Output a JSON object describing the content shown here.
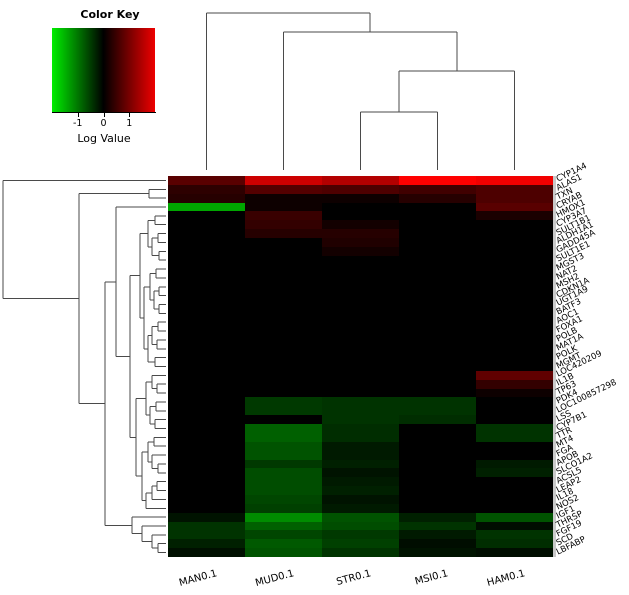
{
  "color_key": {
    "title": "Color Key",
    "axis_label": "Log Value",
    "ticks": [
      {
        "value": -1,
        "label": "-1"
      },
      {
        "value": 0,
        "label": "0"
      },
      {
        "value": 1,
        "label": "1"
      }
    ],
    "gradient_left_color": "#00ee00",
    "gradient_mid_color": "#000000",
    "gradient_right_color": "#ee0000"
  },
  "chart_data": {
    "type": "heatmap",
    "value_scale": "Log Value",
    "colormap": "green-black-red",
    "color_limits": [
      -2,
      2
    ],
    "columns": [
      "MAN0.1",
      "MUD0.1",
      "STR0.1",
      "MSI0.1",
      "HAM0.1"
    ],
    "rows": [
      "CYP1A4",
      "ALAS1",
      "TXN",
      "CRYAB",
      "HMOX1",
      "CYP3A7",
      "SULT1B1",
      "ALDH1A1",
      "GADD45A",
      "SULT1E1",
      "MGST3",
      "NAT2",
      "MSH2",
      "CDKN1A",
      "UGT1A9",
      "BATF3",
      "AOC1",
      "FOXA1",
      "POLB",
      "MAT1A",
      "POLK",
      "MGMT",
      "LOC420209",
      "IL1B",
      "TP63",
      "PDK4",
      "LOC100857298",
      "LSS",
      "CYP7B1",
      "TTR",
      "MT4",
      "FGA",
      "APOB",
      "SLCO1A2",
      "ACSL5",
      "LEAP2",
      "IL18",
      "NOS2",
      "IGF1",
      "THRSP",
      "FGF19",
      "SCD",
      "LBFABP"
    ],
    "values": [
      [
        0.7,
        1.6,
        1.4,
        2.0,
        1.9
      ],
      [
        0.35,
        0.65,
        0.6,
        0.5,
        0.6
      ],
      [
        0.3,
        0.1,
        0.1,
        0.3,
        0.6
      ],
      [
        -1.3,
        0.1,
        0.0,
        0.0,
        0.7
      ],
      [
        0.0,
        0.45,
        0.0,
        0.0,
        0.2
      ],
      [
        0.0,
        0.4,
        0.15,
        0.0,
        0.0
      ],
      [
        0.0,
        0.3,
        0.3,
        0.0,
        0.0
      ],
      [
        0.0,
        0.0,
        0.25,
        0.0,
        0.0
      ],
      [
        0.0,
        0.0,
        0.15,
        0.0,
        0.0
      ],
      [
        0.0,
        0.0,
        0.0,
        0.0,
        0.0
      ],
      [
        0.0,
        0.0,
        0.0,
        0.0,
        0.0
      ],
      [
        0.0,
        0.0,
        0.0,
        0.0,
        0.0
      ],
      [
        0.0,
        0.0,
        0.0,
        0.0,
        0.0
      ],
      [
        0.0,
        0.0,
        0.0,
        0.0,
        0.0
      ],
      [
        0.0,
        0.0,
        0.0,
        0.0,
        0.0
      ],
      [
        0.0,
        0.0,
        0.0,
        0.0,
        0.0
      ],
      [
        0.0,
        0.0,
        0.0,
        0.0,
        0.0
      ],
      [
        0.0,
        0.0,
        0.0,
        0.0,
        0.0
      ],
      [
        0.0,
        0.0,
        0.0,
        0.0,
        0.0
      ],
      [
        0.0,
        0.0,
        0.0,
        0.0,
        0.0
      ],
      [
        0.0,
        0.0,
        0.0,
        0.0,
        0.0
      ],
      [
        0.0,
        0.0,
        0.0,
        0.0,
        0.0
      ],
      [
        0.0,
        0.0,
        0.0,
        0.0,
        0.75
      ],
      [
        0.0,
        0.0,
        0.0,
        0.0,
        0.4
      ],
      [
        0.0,
        0.0,
        0.0,
        0.0,
        0.1
      ],
      [
        0.0,
        -0.45,
        -0.4,
        -0.4,
        0.0
      ],
      [
        0.0,
        -0.45,
        -0.4,
        -0.4,
        0.0
      ],
      [
        0.0,
        0.0,
        -0.4,
        -0.35,
        0.0
      ],
      [
        0.0,
        -0.75,
        -0.35,
        0.0,
        -0.4
      ],
      [
        0.0,
        -0.75,
        -0.35,
        0.0,
        -0.4
      ],
      [
        0.0,
        -0.65,
        -0.2,
        0.0,
        0.0
      ],
      [
        0.0,
        -0.65,
        -0.2,
        0.0,
        0.0
      ],
      [
        0.0,
        -0.45,
        -0.25,
        0.0,
        -0.2
      ],
      [
        0.0,
        -0.6,
        -0.15,
        0.0,
        -0.25
      ],
      [
        0.0,
        -0.6,
        -0.2,
        0.0,
        0.0
      ],
      [
        0.0,
        -0.6,
        -0.25,
        0.0,
        0.0
      ],
      [
        0.0,
        -0.55,
        -0.15,
        0.0,
        0.0
      ],
      [
        0.0,
        -0.5,
        -0.2,
        0.0,
        0.0
      ],
      [
        -0.15,
        -1.1,
        -0.65,
        -0.25,
        -0.65
      ],
      [
        -0.4,
        -0.75,
        -0.6,
        -0.4,
        -0.1
      ],
      [
        -0.4,
        -0.55,
        -0.45,
        -0.2,
        -0.4
      ],
      [
        -0.25,
        -0.7,
        -0.5,
        -0.1,
        -0.35
      ],
      [
        -0.12,
        -0.65,
        -0.4,
        -0.15,
        -0.1
      ]
    ],
    "col_dendrogram": [
      13,
      0,
      [
        32,
        1,
        [
          71,
          [
            112,
            2,
            3
          ],
          4
        ]
      ]
    ],
    "row_dendrogram": [
      3,
      0,
      [
        79,
        [
          149,
          1,
          2
        ],
        [
          105,
          [
            116,
            3,
            [
              130,
              [
                140,
                [
                  148,
                  [
                    155,
                    4,
                    5
                  ],
                  [
                    152,
                    [
                      158,
                      6,
                      7
                    ],
                    [
                      159,
                      8,
                      9
                    ]
                  ]
                ],
                [
                  144,
                  [
                    150,
                    [
                      156,
                      10,
                      11
                    ],
                    [
                      154,
                      [
                        159,
                        12,
                        13
                      ],
                      [
                        159,
                        14,
                        15
                      ]
                    ]
                  ],
                  [
                    148,
                    [
                      152,
                      [
                        158,
                        16,
                        17
                      ],
                      [
                        157,
                        18,
                        19
                      ]
                    ],
                    [
                      155,
                      20,
                      21
                    ]
                  ]
                ]
              ],
              [
                136,
                [
                  146,
                  [
                    152,
                    22,
                    [
                      157,
                      23,
                      24
                    ]
                  ],
                  [
                    150,
                    [
                      156,
                      25,
                      26
                    ],
                    [
                      155,
                      27,
                      28
                    ]
                  ]
                ],
                [
                  142,
                  [
                    148,
                    [
                      154,
                      29,
                      30
                    ],
                    [
                      152,
                      31,
                      [
                        158,
                        32,
                        33
                      ]
                    ]
                  ],
                  [
                    146,
                    [
                      152,
                      [
                        157,
                        34,
                        35
                      ],
                      36
                    ],
                    37
                  ]
                ]
              ]
            ]
          ],
          [
            132,
            38,
            [
              142,
              39,
              [
                152,
                40,
                [
                  158,
                  41,
                  42
                ]
              ]
            ]
          ]
        ]
      ]
    ]
  }
}
